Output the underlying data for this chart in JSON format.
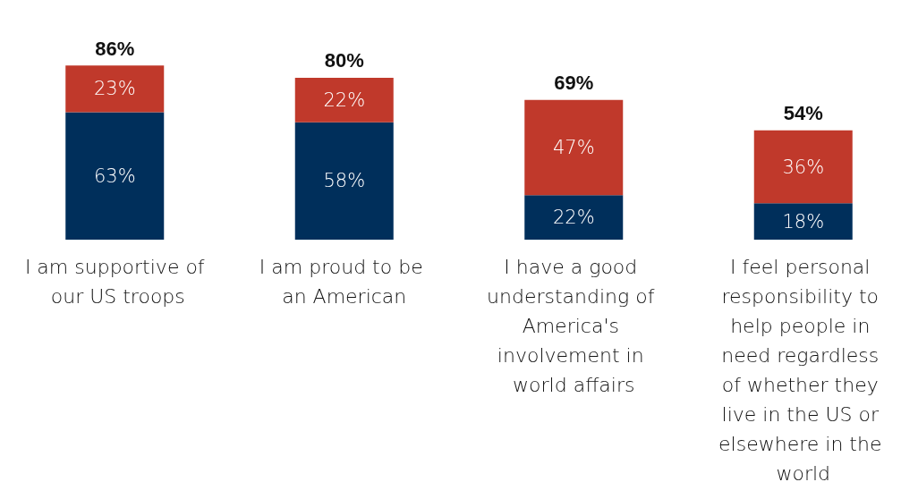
{
  "chart_data": {
    "type": "bar",
    "stacked": true,
    "categories": [
      "I am supportive of our US troops",
      "I am proud to be an American",
      "I have a good understanding of America's involvement in world affairs",
      "I feel personal responsibility to help people in need regardless of whether they live in the US or elsewhere in the world"
    ],
    "series": [
      {
        "color": "#002f5b",
        "values": [
          63,
          58,
          22,
          18
        ],
        "value_labels": [
          "63%",
          "58%",
          "22%",
          "18%"
        ]
      },
      {
        "color": "#c0392b",
        "values": [
          23,
          22,
          47,
          36
        ],
        "value_labels": [
          "23%",
          "22%",
          "47%",
          "36%"
        ]
      }
    ],
    "totals": [
      "86%",
      "80%",
      "69%",
      "54%"
    ]
  }
}
